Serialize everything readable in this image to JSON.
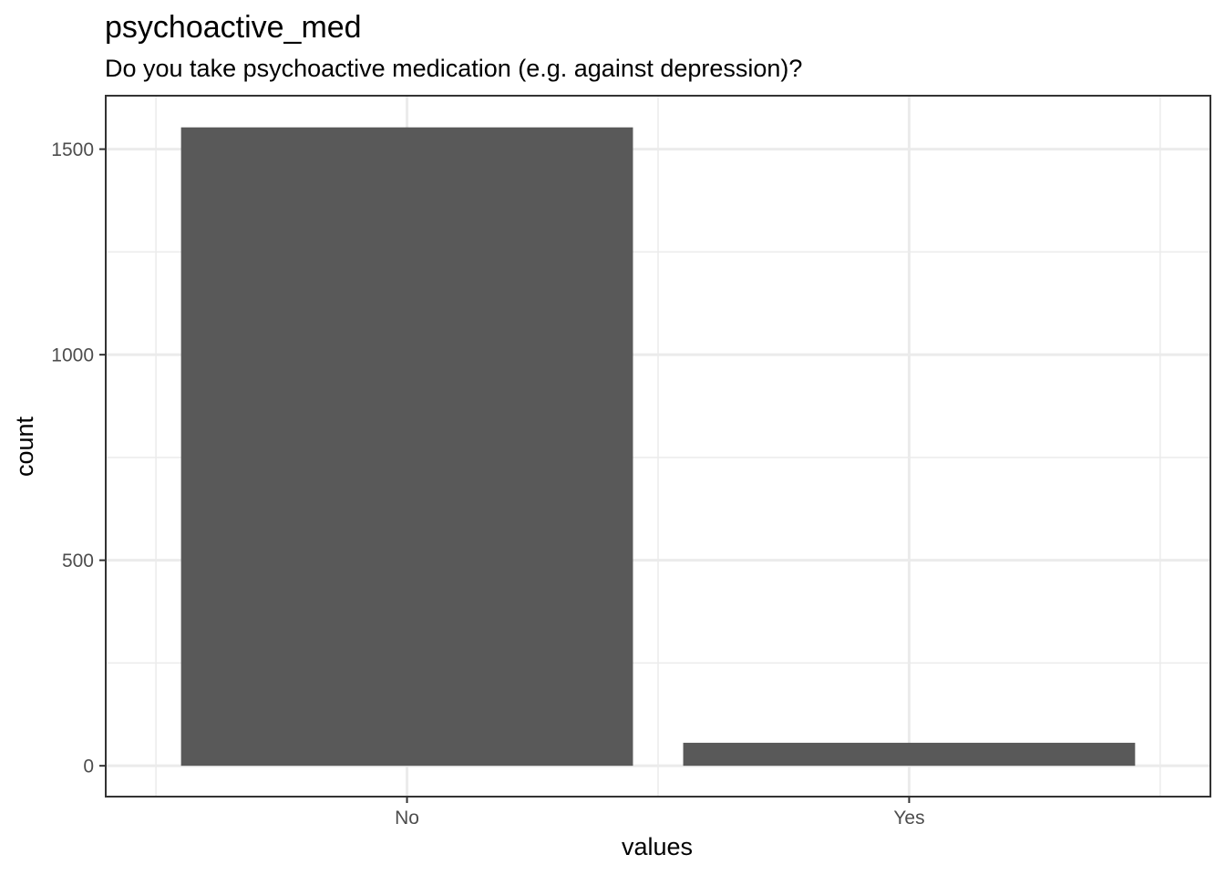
{
  "chart_data": {
    "type": "bar",
    "title": "psychoactive_med",
    "subtitle": "Do you take psychoactive medication (e.g. against depression)?",
    "xlabel": "values",
    "ylabel": "count",
    "categories": [
      "No",
      "Yes"
    ],
    "values": [
      1553,
      56
    ],
    "ylim": [
      -75,
      1630
    ],
    "yticks": [
      0,
      500,
      1000,
      1500
    ],
    "ytick_labels": [
      "0",
      "500",
      "1000",
      "1500"
    ],
    "grid": true,
    "legend": "none",
    "colors": {
      "bar": "#595959",
      "grid": "#ebebeb",
      "panel_border": "#333333",
      "tick": "#333333"
    }
  }
}
